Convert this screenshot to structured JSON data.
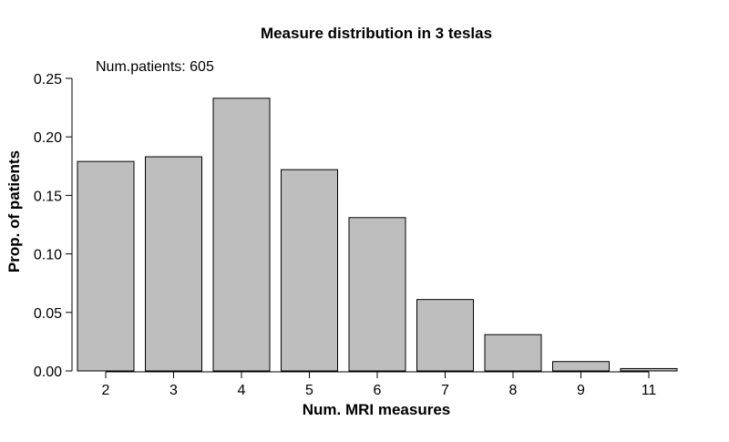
{
  "chart_data": {
    "type": "bar",
    "title": "Measure distribution in  3  teslas",
    "xlabel": "Num. MRI measures",
    "ylabel": "Prop. of patients",
    "annotation": "Num.patients: 605",
    "categories": [
      "2",
      "3",
      "4",
      "5",
      "6",
      "7",
      "8",
      "9",
      "11"
    ],
    "values": [
      0.179,
      0.183,
      0.233,
      0.172,
      0.131,
      0.061,
      0.031,
      0.008,
      0.002
    ],
    "ylim": [
      0,
      0.25
    ],
    "yticks": [
      0.0,
      0.05,
      0.1,
      0.15,
      0.2,
      0.25
    ],
    "ytick_labels": [
      "0.00",
      "0.05",
      "0.10",
      "0.15",
      "0.20",
      "0.25"
    ],
    "grid": false,
    "bar_color": "#bebebe",
    "bar_edge_color": "#000000"
  }
}
